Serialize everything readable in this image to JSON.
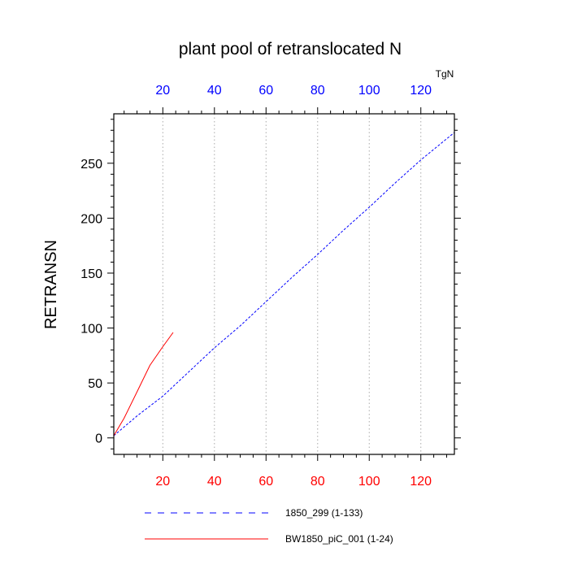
{
  "chart_data": {
    "type": "line",
    "title": "plant pool of retranslocated N",
    "ylabel": "RETRANSN",
    "units": "TgN",
    "xlim": [
      1,
      133
    ],
    "ylim": [
      -15,
      295
    ],
    "x_ticks": [
      20,
      40,
      60,
      80,
      100,
      120
    ],
    "x_tick_labels": [
      "20",
      "40",
      "60",
      "80",
      "100",
      "120"
    ],
    "y_ticks": [
      0,
      50,
      100,
      150,
      200,
      250
    ],
    "y_tick_labels": [
      "0",
      "50",
      "100",
      "150",
      "200",
      "250"
    ],
    "grid": "vertical dotted at x ticks",
    "series": [
      {
        "name": "1850_299 (1-133)",
        "color": "#0000ff",
        "style": "dashed",
        "x": [
          1,
          10,
          20,
          30,
          40,
          50,
          60,
          70,
          80,
          90,
          100,
          110,
          120,
          133
        ],
        "y": [
          2,
          20,
          38,
          60,
          82,
          102,
          124,
          146,
          167,
          189,
          210,
          232,
          253,
          278
        ]
      },
      {
        "name": "BW1850_piC_001 (1-24)",
        "color": "#ff0000",
        "style": "solid",
        "x": [
          1,
          5,
          10,
          15,
          20,
          24
        ],
        "y": [
          2,
          18,
          42,
          66,
          83,
          96
        ]
      }
    ],
    "legend_position": "bottom"
  },
  "colors": {
    "bottom_axis_labels": "#ff0000",
    "top_axis_labels": "#0000ff",
    "grid": "#aaaaaa"
  }
}
